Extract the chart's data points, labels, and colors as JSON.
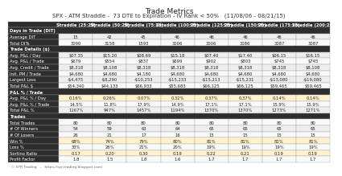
{
  "title": "Trade Metrics",
  "subtitle": "SPX - ATM Straddle -  73 DTE to Expiration - IV Rank < 50%   (11/08/06 - 08/21/15)",
  "columns": [
    "Straddle (25:25)",
    "Straddle (50:25)",
    "Straddle (75:25)",
    "Straddle (100:25)",
    "Straddle (125:25)",
    "Straddle (150:25)",
    "Straddle (175:25)",
    "Straddle (200:25)"
  ],
  "row_groups": [
    {
      "label": "Days in Trade (DIT)",
      "is_header": true
    },
    {
      "label": "Average DIT",
      "is_header": false,
      "values": [
        "15",
        "42",
        "45",
        "46",
        "46",
        "46",
        "46",
        "46"
      ]
    },
    {
      "label": "Total DITs",
      "is_header": false,
      "values": [
        "3090",
        "3158",
        "1593",
        "3006",
        "3006",
        "3086",
        "3087",
        "3087"
      ]
    },
    {
      "label": "Trade Details ($)",
      "is_header": true
    },
    {
      "label": "Avg. P&L / Day",
      "is_header": false,
      "values": [
        "$07.35",
        "$15.20",
        "$08.69",
        "$15.18",
        "$07.40",
        "$17.40",
        "$06.15",
        "$16.15"
      ]
    },
    {
      "label": "Avg. P&L / Trade",
      "is_header": false,
      "values": [
        "$679",
        "$554",
        "$837",
        "$699",
        "$902",
        "$803",
        "$745",
        "$745"
      ]
    },
    {
      "label": "Avg. Credit / Trade",
      "is_header": false,
      "values": [
        "$8,318",
        "$8,108",
        "$8,318",
        "$8,318",
        "$8,318",
        "$8,318",
        "$8,318",
        "$8,108"
      ]
    },
    {
      "label": "Init. PM / Trade",
      "is_header": false,
      "values": [
        "$4,680",
        "$4,680",
        "$4,180",
        "$4,680",
        "$4,680",
        "$4,680",
        "$4,680",
        "$4,680"
      ]
    },
    {
      "label": "Largest Loss",
      "is_header": false,
      "values": [
        "-$4,475",
        "-$8,290",
        "-$10,253",
        "-$15,233",
        "-$15,213",
        "-$15,231",
        "-$13,080",
        "-$19,080"
      ]
    },
    {
      "label": "Total P&L $",
      "is_header": false,
      "values": [
        "$54,340",
        "$44,133",
        "$66,933",
        "$55,683",
        "$66,125",
        "$66,125",
        "$59,465",
        "$59,465"
      ]
    },
    {
      "label": "P&L % / Trade",
      "is_header": true
    },
    {
      "label": "Avg. P&L % / Day",
      "is_header": false,
      "highlight": "yellow",
      "values": [
        "0.16%",
        "0.26%",
        "0.07%",
        "0.32%",
        "0.37%",
        "0.37%",
        "0.14%",
        "0.14%"
      ]
    },
    {
      "label": "Avg. P&L % / Trade",
      "is_header": false,
      "values": [
        "14.5%",
        "11.8%",
        "17.9%",
        "14.9%",
        "17.1%",
        "17.1%",
        "15.9%",
        "15.9%"
      ]
    },
    {
      "label": "Total P&L %",
      "is_header": false,
      "values": [
        "1167%",
        "947%",
        "1457%",
        "1194%",
        "1370%",
        "1370%",
        "1273%",
        "1271%"
      ]
    },
    {
      "label": "Trades",
      "is_header": true
    },
    {
      "label": "Total Trades",
      "is_header": false,
      "values": [
        "80",
        "80",
        "80",
        "80",
        "80",
        "80",
        "80",
        "80"
      ]
    },
    {
      "label": "# Of Winners",
      "is_header": false,
      "values": [
        "54",
        "59",
        "63",
        "64",
        "65",
        "65",
        "65",
        "65"
      ]
    },
    {
      "label": "# Of Losers",
      "is_header": false,
      "values": [
        "26",
        "21",
        "17",
        "16",
        "15",
        "15",
        "15",
        "15"
      ]
    },
    {
      "label": "Win %",
      "is_header": false,
      "highlight": "yellow",
      "values": [
        "68%",
        "74%",
        "79%",
        "80%",
        "81%",
        "81%",
        "81%",
        "81%"
      ]
    },
    {
      "label": "Loss %",
      "is_header": false,
      "values": [
        "33%",
        "26%",
        "21%",
        "20%",
        "19%",
        "19%",
        "19%",
        "19%"
      ]
    },
    {
      "label": "Sortino Ratio",
      "is_header": false,
      "highlight": "yellow",
      "values": [
        "0.17",
        "0.20",
        "0.30",
        "0.19",
        "0.22",
        "0.21",
        "0.19",
        "0.19"
      ]
    },
    {
      "label": "Profit Factor",
      "is_header": false,
      "values": [
        "1.8",
        "1.5",
        "1.8",
        "1.6",
        "1.7",
        "1.7",
        "1.7",
        "1.7"
      ]
    }
  ],
  "header_bg": "#2d2d2d",
  "header_fg": "#ffffff",
  "group_header_bg": "#2d2d2d",
  "group_header_fg": "#ffffff",
  "row_bg_even": "#eeeeee",
  "row_bg_odd": "#f9f9f9",
  "highlight_yellow": "#fff2cc",
  "title_fontsize": 6.5,
  "subtitle_fontsize": 5.0,
  "cell_fontsize": 3.8,
  "header_fontsize": 3.8,
  "label_fontsize": 3.8,
  "footer_fontsize": 3.2
}
